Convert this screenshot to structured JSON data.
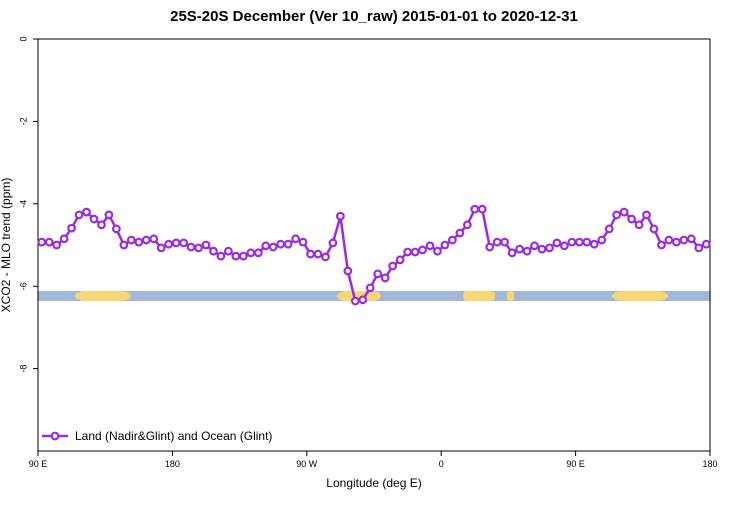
{
  "chart_data": {
    "type": "line",
    "title": "25S-20S December (Ver 10_raw)   2015-01-01 to 2020-12-31",
    "x_label": "Longitude (deg E)",
    "y_label": "XCO2 - MLO trend (ppm)",
    "xlim": [
      90,
      540
    ],
    "ylim": [
      -10,
      0
    ],
    "xticks": [
      {
        "value": 90,
        "label": "90 E"
      },
      180,
      {
        "value": 270,
        "label": "90 W"
      },
      {
        "value": 360,
        "label": "0"
      },
      {
        "value": 450,
        "label": "90 E"
      },
      {
        "value": 540,
        "label": "180"
      }
    ],
    "yticks": [
      0,
      -2,
      -4,
      -6,
      -8
    ],
    "legend": "bottom-left",
    "x": [
      92.5,
      97.5,
      102.5,
      107.5,
      112.5,
      117.5,
      122.5,
      127.5,
      132.5,
      137.5,
      142.5,
      147.5,
      152.5,
      157.5,
      162.5,
      167.5,
      172.5,
      177.5,
      182.5,
      187.5,
      192.5,
      197.5,
      202.5,
      207.5,
      212.5,
      217.5,
      222.5,
      227.5,
      232.5,
      237.5,
      242.5,
      247.5,
      252.5,
      257.5,
      262.5,
      267.5,
      272.5,
      277.5,
      282.5,
      287.5,
      292.5,
      297.5,
      302.5,
      307.5,
      312.5,
      317.5,
      322.5,
      327.5,
      332.5,
      337.5,
      342.5,
      347.5,
      352.5,
      357.5,
      362.5,
      367.5,
      372.5,
      377.5,
      382.5,
      387.5,
      392.5,
      397.5,
      402.5,
      407.5,
      412.5,
      417.5,
      422.5,
      427.5,
      432.5,
      437.5,
      442.5,
      447.5,
      452.5,
      457.5,
      462.5,
      467.5,
      472.5,
      477.5,
      482.5,
      487.5,
      492.5,
      497.5,
      502.5,
      507.5,
      512.5,
      517.5,
      522.5,
      527.5,
      532.5,
      537.5
    ],
    "series": [
      {
        "name": "Land (Nadir&Glint) and Ocean (Glint)",
        "color": "#9a2be2",
        "values": [
          -4.93,
          -4.93,
          -5.0,
          -4.85,
          -4.59,
          -4.27,
          -4.2,
          -4.37,
          -4.51,
          -4.27,
          -4.61,
          -5.0,
          -4.88,
          -4.93,
          -4.88,
          -4.85,
          -5.07,
          -4.98,
          -4.95,
          -4.95,
          -5.05,
          -5.07,
          -5.0,
          -5.15,
          -5.27,
          -5.15,
          -5.27,
          -5.27,
          -5.19,
          -5.19,
          -5.02,
          -5.05,
          -4.98,
          -4.98,
          -4.85,
          -4.93,
          -5.22,
          -5.22,
          -5.29,
          -4.95,
          -4.3,
          -5.63,
          -6.36,
          -6.33,
          -6.04,
          -5.7,
          -5.8,
          -5.51,
          -5.36,
          -5.17,
          -5.17,
          -5.12,
          -5.02,
          -5.15,
          -5.0,
          -4.88,
          -4.71,
          -4.51,
          -4.13,
          -4.13,
          -5.05,
          -4.93,
          -4.93,
          -5.19,
          -5.1,
          -5.15,
          -5.02,
          -5.1,
          -5.07,
          -4.95,
          -5.02,
          -4.93,
          -4.93,
          -4.93,
          -4.98,
          -4.88,
          -4.61,
          -4.27,
          -4.2,
          -4.37,
          -4.51,
          -4.27,
          -4.61,
          -5.0,
          -4.88,
          -4.93,
          -4.88,
          -4.85,
          -5.07,
          -4.98
        ]
      }
    ]
  }
}
